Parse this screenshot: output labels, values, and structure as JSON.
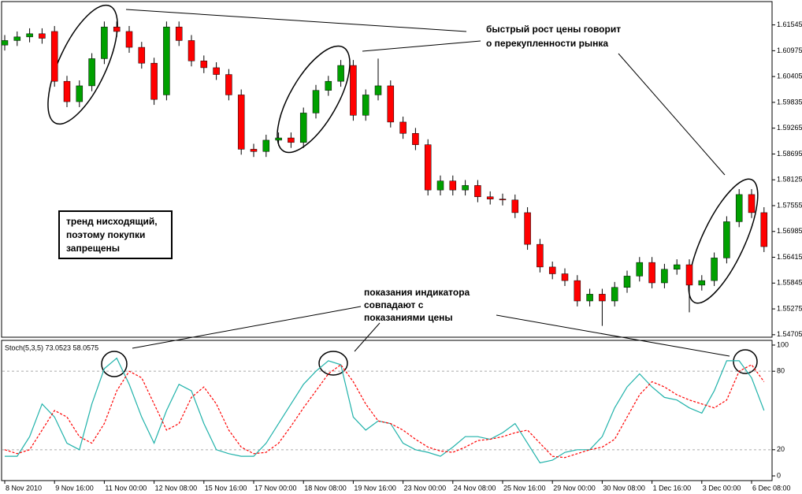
{
  "chart_data": [
    {
      "type": "candlestick",
      "ylim": [
        1.5465,
        1.6206
      ],
      "yticks": [
        1.61545,
        1.60975,
        1.60405,
        1.59835,
        1.59265,
        1.58695,
        1.58125,
        1.57555,
        1.56985,
        1.56415,
        1.55845,
        1.55275,
        1.54705
      ],
      "up_color": "#00a000",
      "down_color": "#ff0000",
      "open": [
        1.611,
        1.612,
        1.6128,
        1.6135,
        1.614,
        1.603,
        1.5985,
        1.602,
        1.608,
        1.615,
        1.614,
        1.6105,
        1.607,
        1.6,
        1.615,
        1.612,
        1.6075,
        1.606,
        1.6045,
        1.6,
        1.588,
        1.5875,
        1.59,
        1.5905,
        1.5895,
        1.596,
        1.601,
        1.603,
        1.6065,
        1.5955,
        1.6,
        1.602,
        1.594,
        1.5915,
        1.589,
        1.579,
        1.581,
        1.579,
        1.58,
        1.5775,
        1.577,
        1.5768,
        1.574,
        1.567,
        1.562,
        1.5605,
        1.559,
        1.5545,
        1.556,
        1.5545,
        1.5575,
        1.56,
        1.563,
        1.5585,
        1.5615,
        1.5625,
        1.558,
        1.559,
        1.564,
        1.572,
        1.578,
        1.574
      ],
      "high": [
        1.6132,
        1.614,
        1.6147,
        1.6147,
        1.6152,
        1.6042,
        1.6032,
        1.6092,
        1.6162,
        1.6162,
        1.6152,
        1.6117,
        1.6082,
        1.6162,
        1.6162,
        1.6132,
        1.6087,
        1.6072,
        1.6057,
        1.6012,
        1.5892,
        1.5912,
        1.5917,
        1.5917,
        1.5972,
        1.6022,
        1.6042,
        1.6077,
        1.6077,
        1.6012,
        1.608,
        1.6032,
        1.5952,
        1.5927,
        1.5902,
        1.5822,
        1.5822,
        1.5812,
        1.5812,
        1.5787,
        1.5782,
        1.578,
        1.5752,
        1.5682,
        1.5632,
        1.5617,
        1.5602,
        1.5572,
        1.5572,
        1.5587,
        1.5612,
        1.5642,
        1.5642,
        1.5627,
        1.5637,
        1.5637,
        1.5602,
        1.5652,
        1.5732,
        1.5792,
        1.5792,
        1.5752
      ],
      "low": [
        1.6098,
        1.6108,
        1.6116,
        1.6113,
        1.6018,
        1.5973,
        1.5973,
        1.6008,
        1.6068,
        1.6128,
        1.6093,
        1.6058,
        1.5978,
        1.5988,
        1.6108,
        1.6063,
        1.6048,
        1.6033,
        1.5988,
        1.5868,
        1.5863,
        1.5863,
        1.5888,
        1.5883,
        1.5883,
        1.5948,
        1.5998,
        1.6018,
        1.5943,
        1.5943,
        1.5988,
        1.5928,
        1.5903,
        1.5878,
        1.5778,
        1.5778,
        1.5778,
        1.5778,
        1.5763,
        1.5758,
        1.5756,
        1.5728,
        1.5658,
        1.5608,
        1.5593,
        1.5578,
        1.5533,
        1.5533,
        1.549,
        1.5533,
        1.5563,
        1.5588,
        1.5573,
        1.5573,
        1.5603,
        1.552,
        1.5568,
        1.5578,
        1.5628,
        1.5708,
        1.5728,
        1.5653
      ],
      "close": [
        1.612,
        1.6128,
        1.6135,
        1.6125,
        1.603,
        1.5985,
        1.602,
        1.608,
        1.615,
        1.614,
        1.6105,
        1.607,
        1.599,
        1.615,
        1.612,
        1.6075,
        1.606,
        1.6045,
        1.6,
        1.588,
        1.5875,
        1.59,
        1.5905,
        1.5895,
        1.596,
        1.601,
        1.603,
        1.6065,
        1.5955,
        1.6,
        1.602,
        1.594,
        1.5915,
        1.589,
        1.579,
        1.581,
        1.579,
        1.58,
        1.5775,
        1.577,
        1.5768,
        1.574,
        1.567,
        1.562,
        1.5605,
        1.559,
        1.5545,
        1.556,
        1.5545,
        1.5575,
        1.56,
        1.563,
        1.5585,
        1.5615,
        1.5625,
        1.558,
        1.559,
        1.564,
        1.572,
        1.578,
        1.574,
        1.5665
      ],
      "annotations": [
        {
          "lines": [
            "быстрый рост цены говорит",
            "о перекупленности рынка"
          ]
        },
        {
          "lines": [
            "тренд нисходящий,",
            "поэтому покупки",
            "запрещены"
          ]
        },
        {
          "lines": [
            "показания индикатора",
            "совпадают с",
            "показаниями цены"
          ]
        }
      ]
    },
    {
      "type": "line",
      "title": "Stoch(5,3,5) 73.0523 58.0575",
      "ylim": [
        -3.6,
        103.6
      ],
      "yticks": [
        100,
        80,
        20,
        0
      ],
      "levels": [
        80,
        20
      ],
      "categories": [
        "8 Nov 2010",
        null,
        null,
        null,
        "9 Nov 16:00",
        null,
        null,
        null,
        "11 Nov 00:00",
        null,
        null,
        null,
        "12 Nov 08:00",
        null,
        null,
        null,
        "15 Nov 16:00",
        null,
        null,
        null,
        "17 Nov 00:00",
        null,
        null,
        null,
        "18 Nov 08:00",
        null,
        null,
        null,
        "19 Nov 16:00",
        null,
        null,
        null,
        "23 Nov 00:00",
        null,
        null,
        null,
        "24 Nov 08:00",
        null,
        null,
        null,
        "25 Nov 16:00",
        null,
        null,
        null,
        "29 Nov 00:00",
        null,
        null,
        null,
        "30 Nov 08:00",
        null,
        null,
        null,
        "1 Dec 16:00",
        null,
        null,
        null,
        "3 Dec 00:00",
        null,
        null,
        null,
        "6 Dec 08:00",
        null
      ],
      "series": [
        {
          "color": "#20b2aa",
          "dashed": false,
          "values": [
            15,
            15,
            30,
            55,
            45,
            25,
            20,
            55,
            82,
            90,
            70,
            45,
            25,
            50,
            70,
            65,
            40,
            20,
            17,
            15,
            15,
            25,
            40,
            55,
            70,
            80,
            88,
            85,
            45,
            35,
            42,
            40,
            25,
            20,
            18,
            15,
            22,
            30,
            30,
            28,
            33,
            40,
            25,
            10,
            12,
            18,
            20,
            20,
            30,
            52,
            68,
            78,
            68,
            60,
            58,
            52,
            48,
            65,
            88,
            88,
            75,
            50
          ]
        },
        {
          "color": "#ff0000",
          "dashed": true,
          "values": [
            20,
            17,
            20,
            35,
            50,
            45,
            30,
            25,
            40,
            65,
            80,
            75,
            55,
            35,
            40,
            60,
            68,
            55,
            35,
            22,
            17,
            18,
            25,
            38,
            52,
            65,
            78,
            85,
            72,
            55,
            42,
            40,
            35,
            28,
            22,
            19,
            18,
            22,
            27,
            28,
            30,
            33,
            35,
            25,
            15,
            14,
            17,
            20,
            22,
            28,
            45,
            62,
            72,
            68,
            62,
            58,
            55,
            52,
            58,
            80,
            85,
            72
          ]
        }
      ]
    }
  ]
}
